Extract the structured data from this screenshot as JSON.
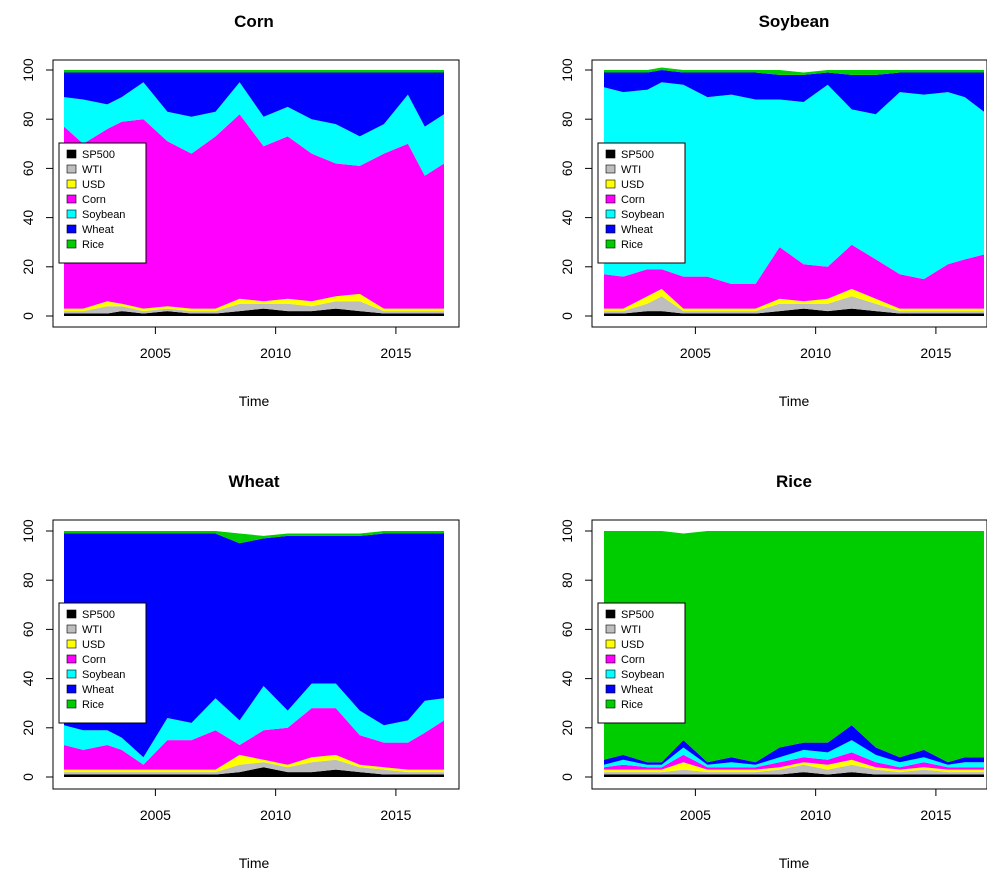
{
  "legend_entries": [
    "SP500",
    "WTI",
    "USD",
    "Corn",
    "Soybean",
    "Wheat",
    "Rice"
  ],
  "colors": [
    "#000000",
    "#bebebe",
    "#ffff00",
    "#ff00ff",
    "#00ffff",
    "#0000ff",
    "#00cd00"
  ],
  "x_ticks": [
    "2005",
    "2010",
    "2015"
  ],
  "y_ticks": [
    "0",
    "20",
    "40",
    "60",
    "80",
    "100"
  ],
  "chart_data": [
    {
      "type": "area",
      "stacked": true,
      "title": "Corn",
      "xlabel": "Time",
      "ylabel": "",
      "xlim": [
        2001.2,
        2017.0
      ],
      "ylim": [
        0,
        100
      ],
      "grid": false,
      "legend_position": "left-middle",
      "x": [
        2001.2,
        2002.0,
        2003.0,
        2003.6,
        2004.5,
        2005.5,
        2006.5,
        2007.5,
        2008.5,
        2009.5,
        2010.5,
        2011.5,
        2012.5,
        2013.5,
        2014.5,
        2015.5,
        2016.2,
        2017.0
      ],
      "series": [
        {
          "name": "SP500",
          "values": [
            1,
            1,
            1,
            2,
            1,
            2,
            1,
            1,
            2,
            3,
            2,
            2,
            3,
            2,
            1,
            1,
            1,
            1
          ]
        },
        {
          "name": "WTI",
          "values": [
            1,
            1,
            3,
            2,
            1,
            1,
            1,
            1,
            3,
            2,
            3,
            2,
            3,
            4,
            1,
            1,
            1,
            1
          ]
        },
        {
          "name": "USD",
          "values": [
            1,
            1,
            2,
            1,
            1,
            1,
            1,
            1,
            2,
            1,
            2,
            2,
            2,
            3,
            1,
            1,
            1,
            1
          ]
        },
        {
          "name": "Corn",
          "values": [
            74,
            67,
            70,
            74,
            77,
            67,
            63,
            70,
            75,
            63,
            66,
            60,
            54,
            52,
            63,
            67,
            54,
            59
          ]
        },
        {
          "name": "Soybean",
          "values": [
            12,
            18,
            10,
            10,
            15,
            12,
            15,
            10,
            13,
            12,
            12,
            14,
            16,
            12,
            12,
            20,
            20,
            20
          ]
        },
        {
          "name": "Wheat",
          "values": [
            10,
            11,
            13,
            10,
            4,
            16,
            18,
            16,
            4,
            18,
            14,
            19,
            21,
            26,
            21,
            9,
            22,
            17
          ]
        },
        {
          "name": "Rice",
          "values": [
            1,
            1,
            1,
            1,
            1,
            1,
            1,
            1,
            1,
            1,
            1,
            1,
            1,
            1,
            1,
            1,
            1,
            1
          ]
        }
      ]
    },
    {
      "type": "area",
      "stacked": true,
      "title": "Soybean",
      "xlabel": "Time",
      "ylabel": "",
      "xlim": [
        2001.2,
        2017.0
      ],
      "ylim": [
        0,
        100
      ],
      "grid": false,
      "legend_position": "left-middle",
      "x": [
        2001.2,
        2002.0,
        2003.0,
        2003.6,
        2004.5,
        2005.5,
        2006.5,
        2007.5,
        2008.5,
        2009.5,
        2010.5,
        2011.5,
        2012.5,
        2013.5,
        2014.5,
        2015.5,
        2016.2,
        2017.0
      ],
      "series": [
        {
          "name": "SP500",
          "values": [
            1,
            1,
            2,
            2,
            1,
            1,
            1,
            1,
            2,
            3,
            2,
            3,
            2,
            1,
            1,
            1,
            1,
            1
          ]
        },
        {
          "name": "WTI",
          "values": [
            1,
            1,
            3,
            6,
            1,
            1,
            1,
            1,
            3,
            2,
            3,
            5,
            3,
            1,
            1,
            1,
            1,
            1
          ]
        },
        {
          "name": "USD",
          "values": [
            1,
            1,
            3,
            3,
            1,
            1,
            1,
            1,
            2,
            1,
            2,
            3,
            2,
            1,
            1,
            1,
            1,
            1
          ]
        },
        {
          "name": "Corn",
          "values": [
            14,
            13,
            11,
            8,
            13,
            13,
            10,
            10,
            21,
            15,
            13,
            18,
            16,
            14,
            12,
            18,
            20,
            22
          ]
        },
        {
          "name": "Soybean",
          "values": [
            76,
            75,
            73,
            76,
            78,
            73,
            77,
            75,
            60,
            66,
            74,
            55,
            59,
            74,
            75,
            70,
            66,
            58
          ]
        },
        {
          "name": "Wheat",
          "values": [
            6,
            8,
            7,
            5,
            5,
            10,
            9,
            11,
            10,
            11,
            5,
            14,
            16,
            8,
            9,
            8,
            10,
            16
          ]
        },
        {
          "name": "Rice",
          "values": [
            1,
            1,
            1,
            1,
            1,
            1,
            1,
            1,
            2,
            1,
            1,
            2,
            2,
            1,
            1,
            1,
            1,
            1
          ]
        }
      ]
    },
    {
      "type": "area",
      "stacked": true,
      "title": "Wheat",
      "xlabel": "Time",
      "ylabel": "",
      "xlim": [
        2001.2,
        2017.0
      ],
      "ylim": [
        0,
        100
      ],
      "grid": false,
      "legend_position": "left-middle",
      "x": [
        2001.2,
        2002.0,
        2003.0,
        2003.6,
        2004.5,
        2005.5,
        2006.5,
        2007.5,
        2008.5,
        2009.5,
        2010.5,
        2011.5,
        2012.5,
        2013.5,
        2014.5,
        2015.5,
        2016.2,
        2017.0
      ],
      "series": [
        {
          "name": "SP500",
          "values": [
            1,
            1,
            1,
            1,
            1,
            1,
            1,
            1,
            2,
            4,
            2,
            2,
            3,
            2,
            1,
            1,
            1,
            1
          ]
        },
        {
          "name": "WTI",
          "values": [
            1,
            1,
            1,
            1,
            1,
            1,
            1,
            1,
            3,
            2,
            2,
            4,
            4,
            2,
            2,
            1,
            1,
            1
          ]
        },
        {
          "name": "USD",
          "values": [
            1,
            1,
            1,
            1,
            1,
            1,
            1,
            1,
            4,
            1,
            1,
            2,
            2,
            1,
            1,
            1,
            1,
            1
          ]
        },
        {
          "name": "Corn",
          "values": [
            10,
            8,
            10,
            8,
            2,
            12,
            12,
            16,
            4,
            12,
            15,
            20,
            19,
            12,
            10,
            11,
            15,
            20
          ]
        },
        {
          "name": "Soybean",
          "values": [
            8,
            8,
            6,
            5,
            3,
            9,
            7,
            13,
            10,
            18,
            7,
            10,
            10,
            10,
            7,
            9,
            13,
            9
          ]
        },
        {
          "name": "Wheat",
          "values": [
            78,
            80,
            80,
            83,
            91,
            75,
            77,
            67,
            72,
            60,
            71,
            60,
            60,
            71,
            78,
            76,
            68,
            67
          ]
        },
        {
          "name": "Rice",
          "values": [
            1,
            1,
            1,
            1,
            1,
            1,
            1,
            1,
            4,
            1,
            1,
            1,
            1,
            1,
            1,
            1,
            1,
            1
          ]
        }
      ]
    },
    {
      "type": "area",
      "stacked": true,
      "title": "Rice",
      "xlabel": "Time",
      "ylabel": "",
      "xlim": [
        2001.2,
        2017.0
      ],
      "ylim": [
        0,
        100
      ],
      "grid": false,
      "legend_position": "left-middle",
      "x": [
        2001.2,
        2002.0,
        2003.0,
        2003.6,
        2004.5,
        2005.5,
        2006.5,
        2007.5,
        2008.5,
        2009.5,
        2010.5,
        2011.5,
        2012.5,
        2013.5,
        2014.5,
        2015.5,
        2016.2,
        2017.0
      ],
      "series": [
        {
          "name": "SP500",
          "values": [
            1,
            1,
            1,
            1,
            1,
            1,
            1,
            1,
            1,
            2,
            1,
            2,
            1,
            1,
            1,
            1,
            1,
            1
          ]
        },
        {
          "name": "WTI",
          "values": [
            1,
            1,
            1,
            1,
            2,
            1,
            1,
            1,
            2,
            3,
            2,
            3,
            2,
            1,
            2,
            1,
            1,
            1
          ]
        },
        {
          "name": "USD",
          "values": [
            1,
            1,
            1,
            1,
            3,
            1,
            1,
            1,
            1,
            1,
            2,
            2,
            1,
            1,
            1,
            1,
            1,
            1
          ]
        },
        {
          "name": "Corn",
          "values": [
            1,
            2,
            1,
            1,
            3,
            1,
            1,
            1,
            2,
            2,
            2,
            3,
            2,
            1,
            2,
            1,
            1,
            1
          ]
        },
        {
          "name": "Soybean",
          "values": [
            1,
            2,
            1,
            1,
            3,
            1,
            2,
            1,
            2,
            3,
            3,
            5,
            3,
            2,
            2,
            1,
            2,
            2
          ]
        },
        {
          "name": "Wheat",
          "values": [
            2,
            2,
            1,
            1,
            3,
            1,
            2,
            1,
            4,
            3,
            4,
            6,
            3,
            2,
            3,
            1,
            2,
            2
          ]
        },
        {
          "name": "Rice",
          "values": [
            93,
            91,
            94,
            94,
            84,
            94,
            92,
            94,
            88,
            86,
            86,
            79,
            88,
            92,
            89,
            94,
            92,
            92
          ]
        }
      ]
    }
  ]
}
